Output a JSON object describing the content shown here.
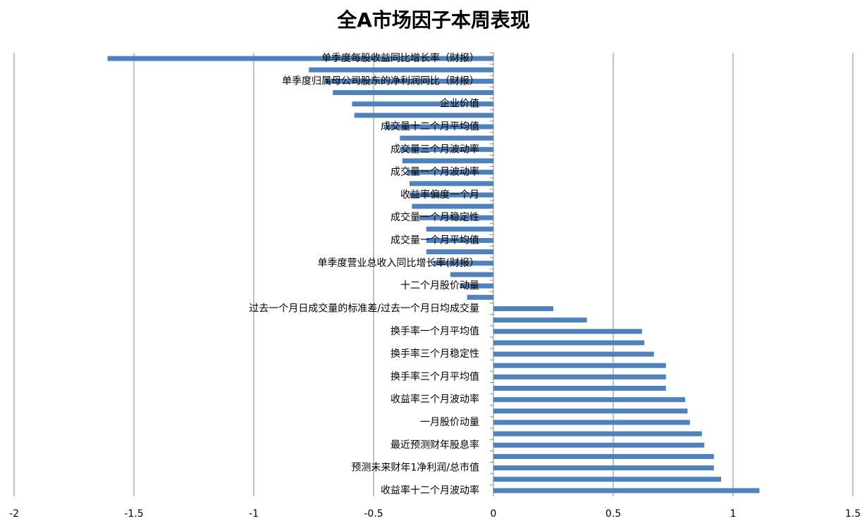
{
  "chart_data": {
    "type": "barh",
    "title": "全A市场因子本周表现",
    "color": "#4f81bd",
    "grid": true,
    "categories": [
      "单季度每股收益同比增长率（财报）",
      null,
      "单季度归属母公司股东的净利润同比（财报）",
      null,
      "企业价值",
      null,
      "成交量十二个月平均值",
      null,
      "成交量三个月波动率",
      null,
      "成交量一个月波动率",
      null,
      "收益率偏度一个月",
      null,
      "成交量一个月稳定性",
      null,
      "成交量一个月平均值",
      null,
      "单季度营业总收入同比增长率(财报）",
      null,
      "十二个月股价动量",
      null,
      "过去一个月日成交量的标准差/过去一个月日均成交量",
      null,
      "换手率一个月平均值",
      null,
      "换手率三个月稳定性",
      null,
      "换手率三个月平均值",
      null,
      "收益率三个月波动率",
      null,
      "一月股价动量",
      null,
      "最近预测财年股息率",
      null,
      "预测未来财年1净利润/总市值",
      null,
      "收益率十二个月波动率"
    ],
    "values": [
      -1.61,
      -0.77,
      -0.7,
      -0.67,
      -0.59,
      -0.58,
      -0.45,
      -0.39,
      -0.39,
      -0.38,
      -0.36,
      -0.35,
      -0.35,
      -0.34,
      -0.31,
      -0.28,
      -0.28,
      -0.28,
      -0.25,
      -0.18,
      -0.14,
      -0.11,
      0.25,
      0.39,
      0.62,
      0.63,
      0.67,
      0.72,
      0.72,
      0.72,
      0.8,
      0.81,
      0.82,
      0.87,
      0.88,
      0.92,
      0.92,
      0.95,
      1.11
    ],
    "xlim": [
      -2,
      1.5
    ],
    "xticks": [
      -2,
      -1.5,
      -1,
      -0.5,
      0,
      0.5,
      1,
      1.5
    ]
  }
}
